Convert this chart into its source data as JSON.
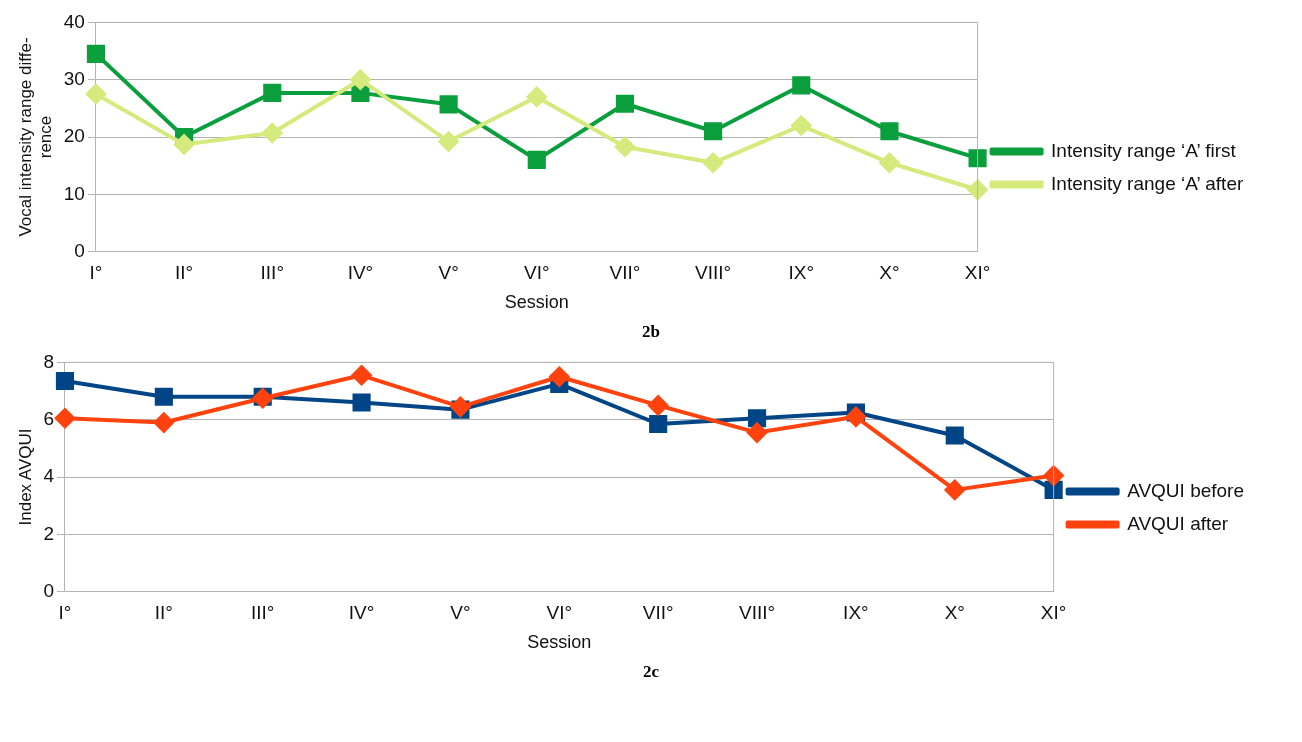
{
  "chart_data": [
    {
      "type": "line",
      "xlabel": "Session",
      "ylabel": "Vocal intensity range diffe-\nrence",
      "categories": [
        "I°",
        "II°",
        "III°",
        "IV°",
        "V°",
        "VI°",
        "VII°",
        "VIII°",
        "IX°",
        "X°",
        "XI°"
      ],
      "series": [
        {
          "name": "Intensity range ‘A’ first",
          "color": "#0a9f3c",
          "marker": "square",
          "values": [
            34.5,
            20,
            27.7,
            27.7,
            25.7,
            16,
            25.8,
            21,
            29,
            21,
            16.3
          ]
        },
        {
          "name": "Intensity range ‘A’ after",
          "color": "#d4ea7c",
          "marker": "diamond",
          "values": [
            27.5,
            18.7,
            20.7,
            30,
            19.2,
            27,
            18.3,
            15.5,
            22,
            15.5,
            10.8
          ]
        }
      ],
      "ylim": [
        0,
        40
      ],
      "yticks": [
        0,
        10,
        20,
        30,
        40
      ],
      "grid": "y",
      "legend": "right",
      "annotations": [
        "2b"
      ]
    },
    {
      "type": "line",
      "xlabel": "Session",
      "ylabel": "Index AVQUI",
      "categories": [
        "I°",
        "II°",
        "III°",
        "IV°",
        "V°",
        "VI°",
        "VII°",
        "VIII°",
        "IX°",
        "X°",
        "XI°"
      ],
      "series": [
        {
          "name": "AVQUI before",
          "color": "#004586",
          "marker": "square",
          "values": [
            7.35,
            6.8,
            6.8,
            6.6,
            6.35,
            7.25,
            5.85,
            6.05,
            6.25,
            5.45,
            3.55
          ]
        },
        {
          "name": "AVQUI after",
          "color": "#ff420e",
          "marker": "diamond",
          "values": [
            6.05,
            5.9,
            6.75,
            7.55,
            6.45,
            7.5,
            6.5,
            5.55,
            6.1,
            3.55,
            4.05
          ]
        }
      ],
      "ylim": [
        0,
        8
      ],
      "yticks": [
        0,
        2,
        4,
        6,
        8
      ],
      "grid": "y",
      "legend": "right",
      "annotations": [
        "2c"
      ]
    }
  ]
}
